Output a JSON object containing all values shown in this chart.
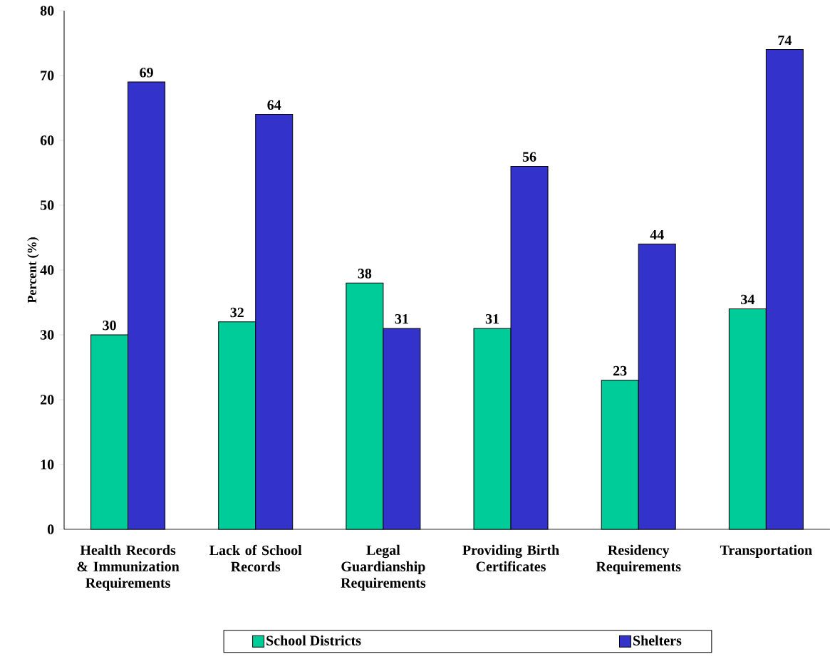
{
  "chart_data": {
    "type": "bar",
    "ylabel": "Percent (%)",
    "categories": [
      "Health Records & Immunization Requirements",
      "Lack of School Records",
      "Legal Guardianship Requirements",
      "Providing Birth Certificates",
      "Residency Requirements",
      "Transportation"
    ],
    "series": [
      {
        "name": "School Districts",
        "color": "#00cc99",
        "values": [
          30,
          32,
          38,
          31,
          23,
          34
        ]
      },
      {
        "name": "Shelters",
        "color": "#3333cc",
        "values": [
          69,
          64,
          31,
          56,
          44,
          74
        ]
      }
    ],
    "ylim": [
      0,
      80
    ],
    "yticks": [
      0,
      10,
      20,
      30,
      40,
      50,
      60,
      70,
      80
    ],
    "data_labels": true,
    "legend": "bottom"
  }
}
